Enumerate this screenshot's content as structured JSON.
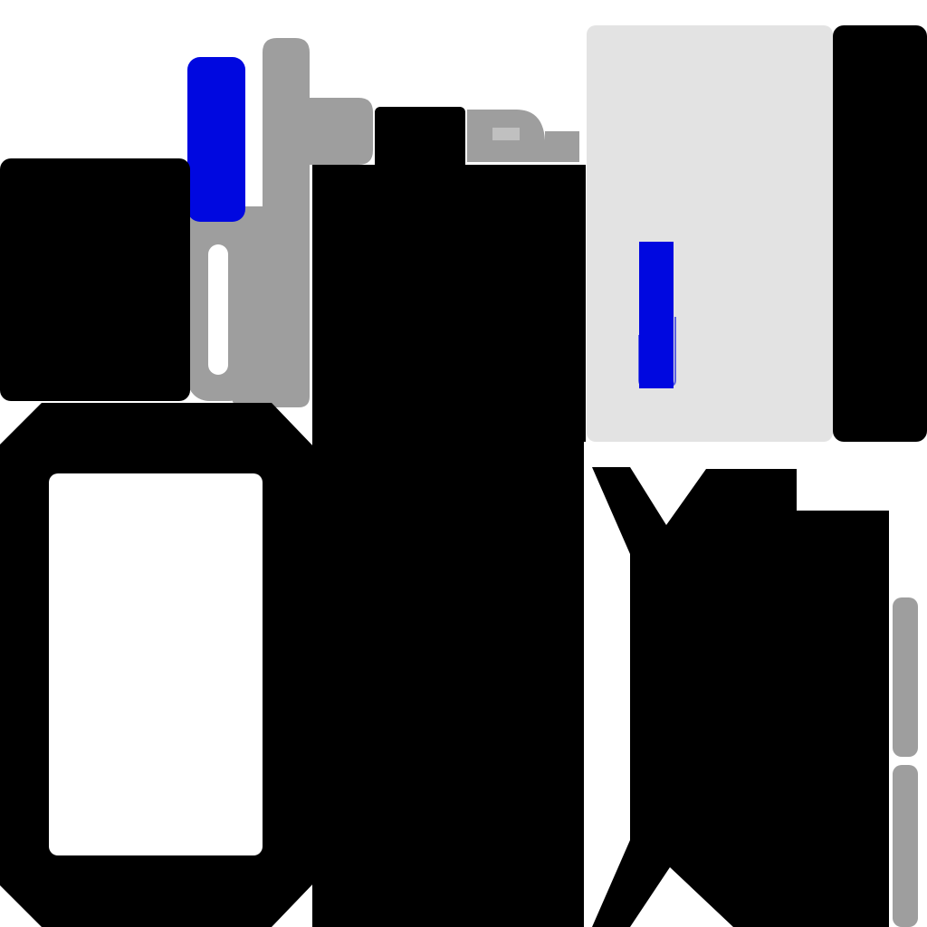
{
  "palette": {
    "black": "#000000",
    "blue": "#0008e0",
    "gray": "#9e9e9e",
    "light_gray": "#e3e3e3",
    "white": "#ffffff"
  },
  "visible_text": []
}
